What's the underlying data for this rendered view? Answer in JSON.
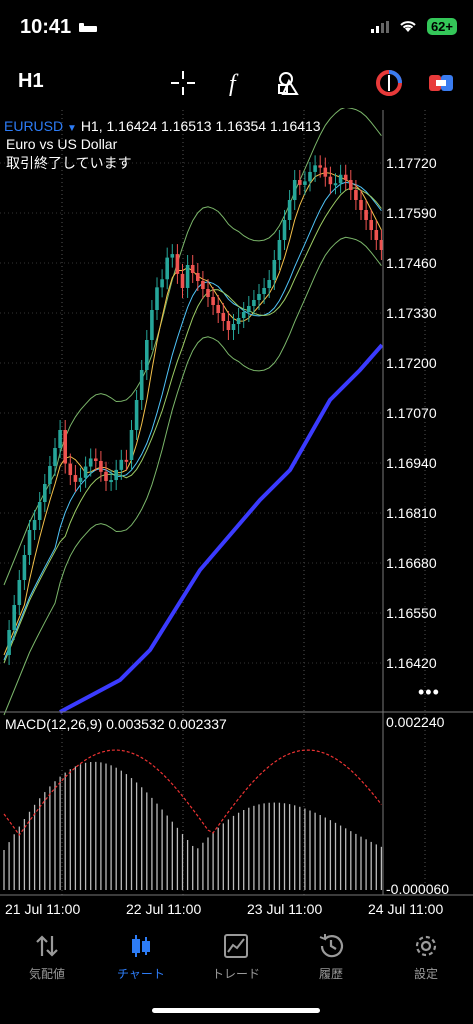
{
  "status_bar": {
    "time": "10:41",
    "battery": "62+"
  },
  "toolbar": {
    "timeframe": "H1"
  },
  "chart_header": {
    "symbol": "EURUSD",
    "dropdown": "▼",
    "ohlc": "H1, 1.16424 1.16513 1.16354 1.16413",
    "description": "Euro vs US Dollar",
    "status": "取引終了しています"
  },
  "price_axis": [
    "1.17720",
    "1.17590",
    "1.17460",
    "1.17330",
    "1.17200",
    "1.17070",
    "1.16940",
    "1.16810",
    "1.16680",
    "1.16550",
    "1.16420"
  ],
  "macd": {
    "label": "MACD(12,26,9) 0.003532 0.002337",
    "axis_top": "0.002240",
    "axis_bottom": "-0.000060"
  },
  "time_axis": [
    "21 Jul 11:00",
    "22 Jul 11:00",
    "23 Jul 11:00",
    "24 Jul 11:00"
  ],
  "more": "•••",
  "bottom_nav": [
    {
      "label": "気配値",
      "icon": "quotes-arrows-icon",
      "active": false
    },
    {
      "label": "チャート",
      "icon": "candlestick-icon",
      "active": true
    },
    {
      "label": "トレード",
      "icon": "trade-chart-icon",
      "active": false
    },
    {
      "label": "履歴",
      "icon": "history-clock-icon",
      "active": false
    },
    {
      "label": "設定",
      "icon": "settings-gear-icon",
      "active": false
    }
  ],
  "colors": {
    "bull": "#26a69a",
    "bear": "#ef5350",
    "ma_blue": "#3b3bff",
    "accent": "#2d7cf6"
  }
}
